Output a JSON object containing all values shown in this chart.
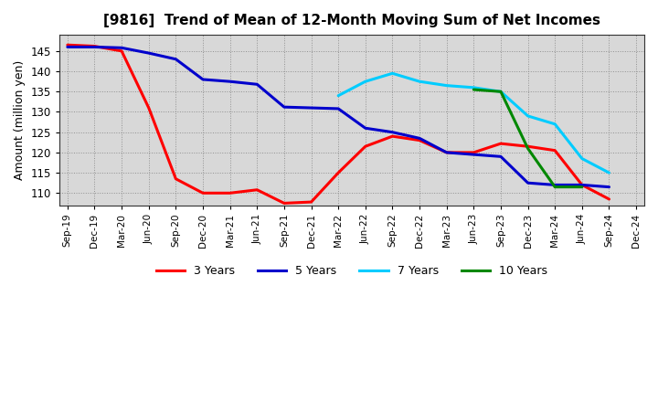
{
  "title": "[9816]  Trend of Mean of 12-Month Moving Sum of Net Incomes",
  "ylabel": "Amount (million yen)",
  "ylim": [
    107,
    149
  ],
  "yticks": [
    110,
    115,
    120,
    125,
    130,
    135,
    140,
    145
  ],
  "background_color": "#d8d8d8",
  "grid_color": "#888888",
  "line_colors": {
    "3y": "#ff0000",
    "5y": "#0000cc",
    "7y": "#00ccff",
    "10y": "#008800"
  },
  "legend_labels": [
    "3 Years",
    "5 Years",
    "7 Years",
    "10 Years"
  ],
  "x_labels": [
    "Sep-19",
    "Dec-19",
    "Mar-20",
    "Jun-20",
    "Sep-20",
    "Dec-20",
    "Mar-21",
    "Jun-21",
    "Sep-21",
    "Dec-21",
    "Mar-22",
    "Jun-22",
    "Sep-22",
    "Dec-22",
    "Mar-23",
    "Jun-23",
    "Sep-23",
    "Dec-23",
    "Mar-24",
    "Jun-24",
    "Sep-24",
    "Dec-24"
  ],
  "y3": [
    146.5,
    146.2,
    145.0,
    131.0,
    113.5,
    110.0,
    110.0,
    110.8,
    107.5,
    107.8,
    115.0,
    121.5,
    124.0,
    123.0,
    120.0,
    120.0,
    122.2,
    121.5,
    120.5,
    112.0,
    108.5,
    null
  ],
  "y5": [
    146.0,
    146.0,
    145.8,
    144.5,
    143.0,
    138.0,
    137.5,
    136.8,
    131.2,
    131.0,
    130.8,
    126.0,
    125.0,
    123.5,
    120.0,
    119.5,
    119.0,
    112.5,
    112.0,
    112.0,
    111.5,
    null
  ],
  "y7": [
    null,
    null,
    null,
    null,
    null,
    null,
    null,
    null,
    null,
    null,
    134.0,
    137.5,
    139.5,
    137.5,
    136.5,
    136.0,
    135.0,
    129.0,
    127.0,
    118.5,
    115.0,
    null
  ],
  "y10": [
    null,
    null,
    null,
    null,
    null,
    null,
    null,
    null,
    null,
    null,
    null,
    null,
    null,
    null,
    null,
    null,
    null,
    null,
    null,
    null,
    null,
    null
  ],
  "y10_indices": [
    15,
    16,
    17,
    18,
    19
  ],
  "y10_values": [
    135.5,
    135.0,
    121.0,
    111.5,
    111.5
  ]
}
